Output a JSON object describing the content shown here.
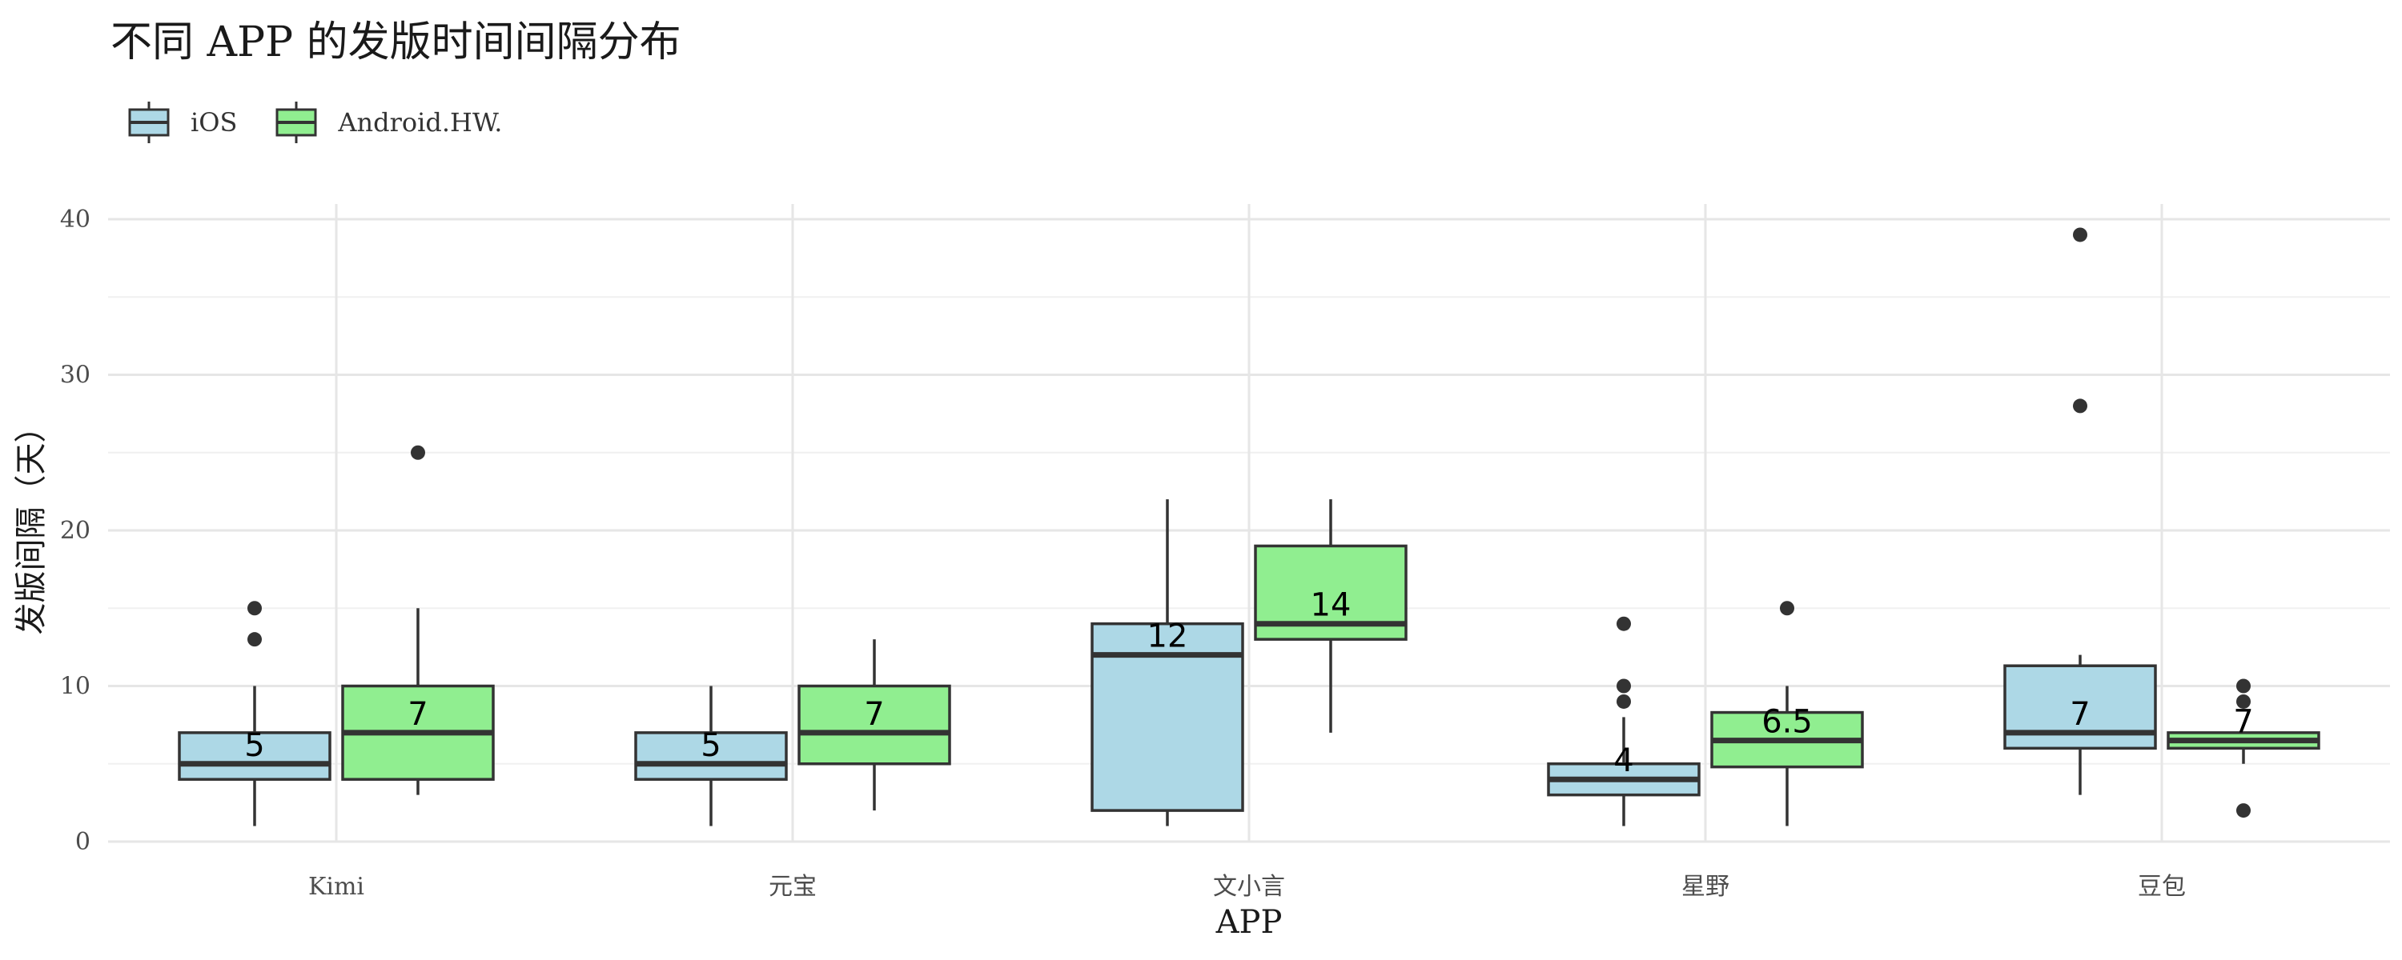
{
  "chart_data": {
    "type": "boxplot",
    "title": "不同 APP 的发版时间间隔分布",
    "xlabel": "APP",
    "ylabel": "发版间隔（天）",
    "ylim": [
      0,
      42
    ],
    "yticks": [
      0,
      10,
      20,
      30,
      40
    ],
    "grid": true,
    "legend_position": "top-left",
    "categories": [
      "Kimi",
      "元宝",
      "文小言",
      "星野",
      "豆包"
    ],
    "series": [
      {
        "name": "iOS",
        "color": "#add8e6",
        "boxes": [
          {
            "min": 1,
            "q1": 4,
            "median": 5,
            "q3": 7,
            "max": 10,
            "outliers": [
              13,
              15
            ],
            "label": "5"
          },
          {
            "min": 1,
            "q1": 4,
            "median": 5,
            "q3": 7,
            "max": 10,
            "outliers": [],
            "label": "5"
          },
          {
            "min": 1,
            "q1": 2,
            "median": 12,
            "q3": 14,
            "max": 22,
            "outliers": [],
            "label": "12"
          },
          {
            "min": 1,
            "q1": 3,
            "median": 4,
            "q3": 5,
            "max": 8,
            "outliers": [
              9,
              10,
              14
            ],
            "label": "4"
          },
          {
            "min": 3,
            "q1": 6,
            "median": 7,
            "q3": 11.3,
            "max": 12,
            "outliers": [
              28,
              39
            ],
            "label": "7"
          }
        ]
      },
      {
        "name": "Android.HW.",
        "color": "#90ee90",
        "boxes": [
          {
            "min": 3,
            "q1": 4,
            "median": 7,
            "q3": 10,
            "max": 15,
            "outliers": [
              25
            ],
            "label": "7"
          },
          {
            "min": 2,
            "q1": 5,
            "median": 7,
            "q3": 10,
            "max": 13,
            "outliers": [],
            "label": "7"
          },
          {
            "min": 7,
            "q1": 13,
            "median": 14,
            "q3": 19,
            "max": 22,
            "outliers": [],
            "label": "14"
          },
          {
            "min": 1,
            "q1": 4.8,
            "median": 6.5,
            "q3": 8.3,
            "max": 10,
            "outliers": [
              15
            ],
            "label": "6.5"
          },
          {
            "min": 5,
            "q1": 6,
            "median": 6.5,
            "q3": 7,
            "max": 7,
            "outliers": [
              2,
              9,
              10
            ],
            "label": "7"
          }
        ]
      }
    ]
  }
}
